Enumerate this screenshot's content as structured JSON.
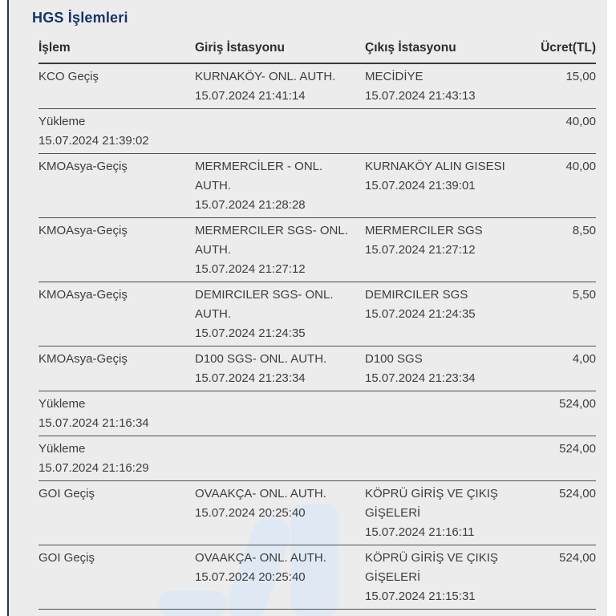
{
  "page": {
    "title": "HGS İşlemleri"
  },
  "table": {
    "columns": [
      "İşlem",
      "Giriş İstasyonu",
      "Çıkış İstasyonu",
      "Ücret(TL)"
    ],
    "rows": [
      {
        "islem": "KCO Geçiş",
        "islem_date": "",
        "giris": "KURNAKÖY- ONL. AUTH.",
        "giris_date": "15.07.2024 21:41:14",
        "cikis": "MECİDİYE",
        "cikis_date": "15.07.2024 21:43:13",
        "ucret": "15,00"
      },
      {
        "islem": "Yükleme",
        "islem_date": "15.07.2024 21:39:02",
        "giris": "",
        "giris_date": "",
        "cikis": "",
        "cikis_date": "",
        "ucret": "40,00"
      },
      {
        "islem": "KMOAsya-Geçiş",
        "islem_date": "",
        "giris": "MERMERCİLER - ONL. AUTH.",
        "giris_date": "15.07.2024 21:28:28",
        "cikis": "KURNAKÖY ALIN GISESI",
        "cikis_date": "15.07.2024 21:39:01",
        "ucret": "40,00"
      },
      {
        "islem": "KMOAsya-Geçiş",
        "islem_date": "",
        "giris": "MERMERCILER SGS- ONL. AUTH.",
        "giris_date": "15.07.2024 21:27:12",
        "cikis": "MERMERCILER SGS",
        "cikis_date": "15.07.2024 21:27:12",
        "ucret": "8,50"
      },
      {
        "islem": "KMOAsya-Geçiş",
        "islem_date": "",
        "giris": "DEMIRCILER SGS- ONL. AUTH.",
        "giris_date": "15.07.2024 21:24:35",
        "cikis": "DEMIRCILER SGS",
        "cikis_date": "15.07.2024 21:24:35",
        "ucret": "5,50"
      },
      {
        "islem": "KMOAsya-Geçiş",
        "islem_date": "",
        "giris": "D100 SGS- ONL. AUTH.",
        "giris_date": "15.07.2024 21:23:34",
        "cikis": "D100 SGS",
        "cikis_date": "15.07.2024 21:23:34",
        "ucret": "4,00"
      },
      {
        "islem": "Yükleme",
        "islem_date": "15.07.2024 21:16:34",
        "giris": "",
        "giris_date": "",
        "cikis": "",
        "cikis_date": "",
        "ucret": "524,00"
      },
      {
        "islem": "Yükleme",
        "islem_date": "15.07.2024 21:16:29",
        "giris": "",
        "giris_date": "",
        "cikis": "",
        "cikis_date": "",
        "ucret": "524,00"
      },
      {
        "islem": "GOI Geçiş",
        "islem_date": "",
        "giris": "OVAAKÇA- ONL. AUTH.",
        "giris_date": "15.07.2024 20:25:40",
        "cikis": "KÖPRÜ GİRİŞ VE ÇIKIŞ GİŞELERİ",
        "cikis_date": "15.07.2024 21:16:11",
        "ucret": "524,00"
      },
      {
        "islem": "GOI Geçiş",
        "islem_date": "",
        "giris": "OVAAKÇA- ONL. AUTH.",
        "giris_date": "15.07.2024 20:25:40",
        "cikis": "KÖPRÜ GİRİŞ VE ÇIKIŞ GİŞELERİ",
        "cikis_date": "15.07.2024 21:15:31",
        "ucret": "524,00"
      }
    ]
  },
  "colors": {
    "title_text": "#17336b",
    "panel_bg": "#ececec",
    "body_bg": "#ffffff",
    "row_divider": "#4f4f4f",
    "header_divider": "#3a3a3a",
    "body_text": "#3d3d3d",
    "left_edge_line": "#1d3b4a",
    "watermark": "#dfe9f3"
  }
}
